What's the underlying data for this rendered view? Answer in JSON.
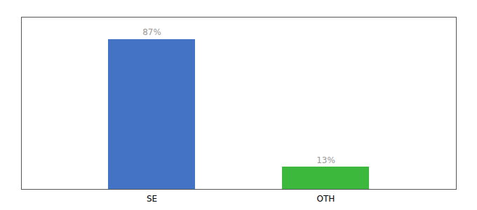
{
  "chart_data": {
    "type": "bar",
    "categories": [
      "SE",
      "OTH"
    ],
    "values": [
      87,
      13
    ],
    "value_labels": [
      "87%",
      "13%"
    ],
    "colors": [
      "#4472c4",
      "#3cb83c"
    ],
    "ylim": [
      0,
      100
    ],
    "yticks": [],
    "data_labels": true,
    "tick_labels": "x",
    "grid": false
  }
}
